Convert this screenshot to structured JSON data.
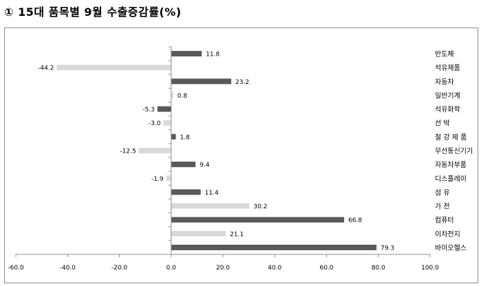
{
  "title": "① 15대 품목별 9월 수출증감률(%)",
  "chart_data": {
    "type": "bar",
    "orientation": "horizontal",
    "categories": [
      "반도체",
      "석유제품",
      "자동차",
      "일반기계",
      "석유화학",
      "선 박",
      "철 강 제 품",
      "무선통신기기",
      "자동차부품",
      "디스플레이",
      "섬 유",
      "가 전",
      "컴퓨터",
      "이차전지",
      "바이오헬스"
    ],
    "values": [
      11.8,
      -44.2,
      23.2,
      0.8,
      -5.3,
      -3.0,
      1.8,
      -12.5,
      9.4,
      -1.9,
      11.4,
      30.2,
      66.8,
      21.1,
      79.3
    ],
    "value_labels": [
      "11.8",
      "-44.2",
      "23.2",
      "0.8",
      "-5.3",
      "-3.0",
      "1.8",
      "-12.5",
      "9.4",
      "-1.9",
      "11.4",
      "30.2",
      "66.8",
      "21.1",
      "79.3"
    ],
    "bar_colors": [
      "#595959",
      "#d9d9d9",
      "#595959",
      "#d9d9d9",
      "#595959",
      "#d9d9d9",
      "#595959",
      "#d9d9d9",
      "#595959",
      "#d9d9d9",
      "#595959",
      "#d9d9d9",
      "#595959",
      "#d9d9d9",
      "#595959"
    ],
    "xlim": [
      -60,
      100
    ],
    "xticks": [
      "-60.0",
      "-40.0",
      "-20.0",
      "0.0",
      "20.0",
      "40.0",
      "60.0",
      "80.0",
      "100.0"
    ],
    "grid": false,
    "legend": "none"
  }
}
